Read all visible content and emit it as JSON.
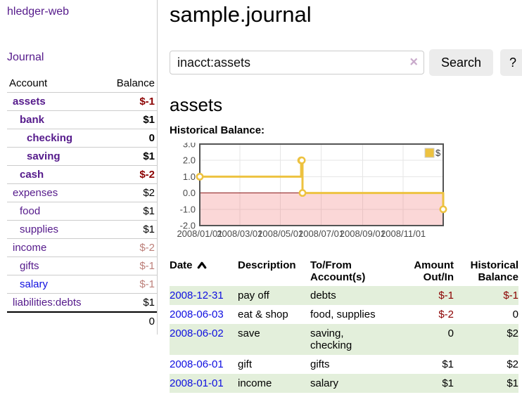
{
  "app": {
    "title": "hledger-web"
  },
  "colors": {
    "link-purple": "#551a8b",
    "link-blue": "#0f0fe0",
    "negative": "#8b0000",
    "negative-muted": "#bc7f79",
    "row-green": "#e3efdb",
    "series-gold": "#edc240",
    "chart-border": "#545454",
    "chart-grid": "#e6e6e6",
    "chart-negative-bg": "rgba(240,110,110,0.28)",
    "chart-zero-line": "#8b1a1a",
    "tick-label": "#4a4a4a",
    "button-bg": "#ececec",
    "input-border": "#cccccc",
    "divider": "#cccccc",
    "clear-x": "#c9aacb"
  },
  "sidebar": {
    "journal_link": "Journal",
    "table": {
      "headers": {
        "account": "Account",
        "balance": "Balance"
      },
      "rows": [
        {
          "account": "assets",
          "balance": "$-1",
          "indent": 1,
          "bold": true,
          "balance_color": "neg"
        },
        {
          "account": "bank",
          "balance": "$1",
          "indent": 2,
          "bold": true
        },
        {
          "account": "checking",
          "balance": "0",
          "indent": 3,
          "bold": true
        },
        {
          "account": "saving",
          "balance": "$1",
          "indent": 3,
          "bold": true
        },
        {
          "account": "cash",
          "balance": "$-2",
          "indent": 2,
          "bold": true,
          "balance_color": "neg"
        },
        {
          "account": "expenses",
          "balance": "$2",
          "indent": 1
        },
        {
          "account": "food",
          "balance": "$1",
          "indent": 2
        },
        {
          "account": "supplies",
          "balance": "$1",
          "indent": 2
        },
        {
          "account": "income",
          "balance": "$-2",
          "indent": 1,
          "balance_color": "neg-muted"
        },
        {
          "account": "gifts",
          "balance": "$-1",
          "indent": 2,
          "balance_color": "neg-muted"
        },
        {
          "account": "salary",
          "balance": "$-1",
          "indent": 2,
          "balance_color": "neg-muted",
          "link_blue": true
        },
        {
          "account": "liabilities:debts",
          "balance": "$1",
          "indent": 1
        }
      ],
      "total": "0"
    }
  },
  "main": {
    "title": "sample.journal",
    "search": {
      "value": "inacct:assets",
      "clear_icon": "×",
      "button": "Search",
      "help": "?"
    },
    "account_heading": "assets",
    "chart_label": "Historical Balance:"
  },
  "chart_data": {
    "type": "line",
    "step": true,
    "title": "Historical Balance",
    "x_type": "date",
    "series": [
      {
        "name": "$",
        "color": "#edc240",
        "points": [
          [
            "2008-01-01",
            1
          ],
          [
            "2008-06-01",
            2
          ],
          [
            "2008-06-02",
            2
          ],
          [
            "2008-06-03",
            0
          ],
          [
            "2008-12-31",
            -1
          ]
        ]
      }
    ],
    "xlim": [
      "2008-01-01",
      "2008-12-31"
    ],
    "ylim": [
      -2,
      3
    ],
    "yticks": [
      "3.0",
      "2.0",
      "1.0",
      "0.0",
      "-1.0",
      "-2.0"
    ],
    "xticks": [
      {
        "date": "2008-01-01",
        "label": "2008/01/01"
      },
      {
        "date": "2008-03-01",
        "label": "2008/03/01"
      },
      {
        "date": "2008-05-01",
        "label": "2008/05/01"
      },
      {
        "date": "2008-07-01",
        "label": "2008/07/01"
      },
      {
        "date": "2008-09-01",
        "label": "2008/09/01"
      },
      {
        "date": "2008-11-01",
        "label": "2008/11/01"
      }
    ],
    "legend": {
      "label": "$",
      "position": "top-right"
    },
    "grid": true,
    "negative_region": true
  },
  "register": {
    "headers": [
      "Date",
      "Description",
      "To/From Account(s)",
      "Amount Out/In",
      "Historical Balance"
    ],
    "sort": "ascending",
    "rows": [
      {
        "date": "2008-12-31",
        "description": "pay off",
        "accounts": "debts",
        "amount": "$-1",
        "balance": "$-1",
        "amount_negative": true,
        "balance_negative": true
      },
      {
        "date": "2008-06-03",
        "description": "eat & shop",
        "accounts": "food, supplies",
        "amount": "$-2",
        "balance": "0",
        "amount_negative": true
      },
      {
        "date": "2008-06-02",
        "description": "save",
        "accounts": "saving, checking",
        "amount": "0",
        "balance": "$2"
      },
      {
        "date": "2008-06-01",
        "description": "gift",
        "accounts": "gifts",
        "amount": "$1",
        "balance": "$2"
      },
      {
        "date": "2008-01-01",
        "description": "income",
        "accounts": "salary",
        "amount": "$1",
        "balance": "$1"
      }
    ]
  }
}
